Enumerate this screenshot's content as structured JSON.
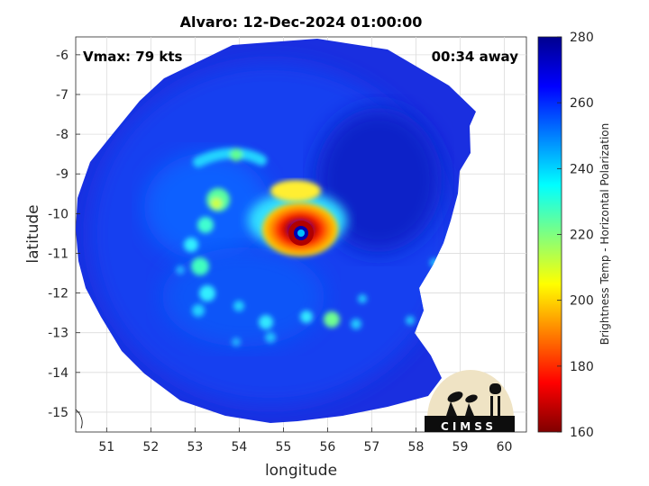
{
  "chart_data": {
    "type": "heatmap",
    "title": "Alvaro: 12-Dec-2024 01:00:00",
    "xlabel": "longitude",
    "ylabel": "latitude",
    "xlim": [
      50.3,
      60.5
    ],
    "ylim": [
      -15.5,
      -5.55
    ],
    "xticks": [
      51,
      52,
      53,
      54,
      55,
      56,
      57,
      58,
      59,
      60
    ],
    "yticks": [
      -6,
      -7,
      -8,
      -9,
      -10,
      -11,
      -12,
      -13,
      -14,
      -15
    ],
    "grid": true,
    "annotations": {
      "vmax": "Vmax: 79 kts",
      "away": "00:34 away"
    },
    "colorbar": {
      "label": "Brightness Temp - Horizontal Polarization",
      "range": [
        160,
        280
      ],
      "ticks": [
        160,
        180,
        200,
        220,
        240,
        260,
        280
      ],
      "colormap": "jet"
    },
    "storm": {
      "eye_center": [
        55.4,
        -10.5
      ],
      "min_temp_k": 165,
      "background_temp_k": 262
    }
  },
  "logo_text": "CIMSS"
}
